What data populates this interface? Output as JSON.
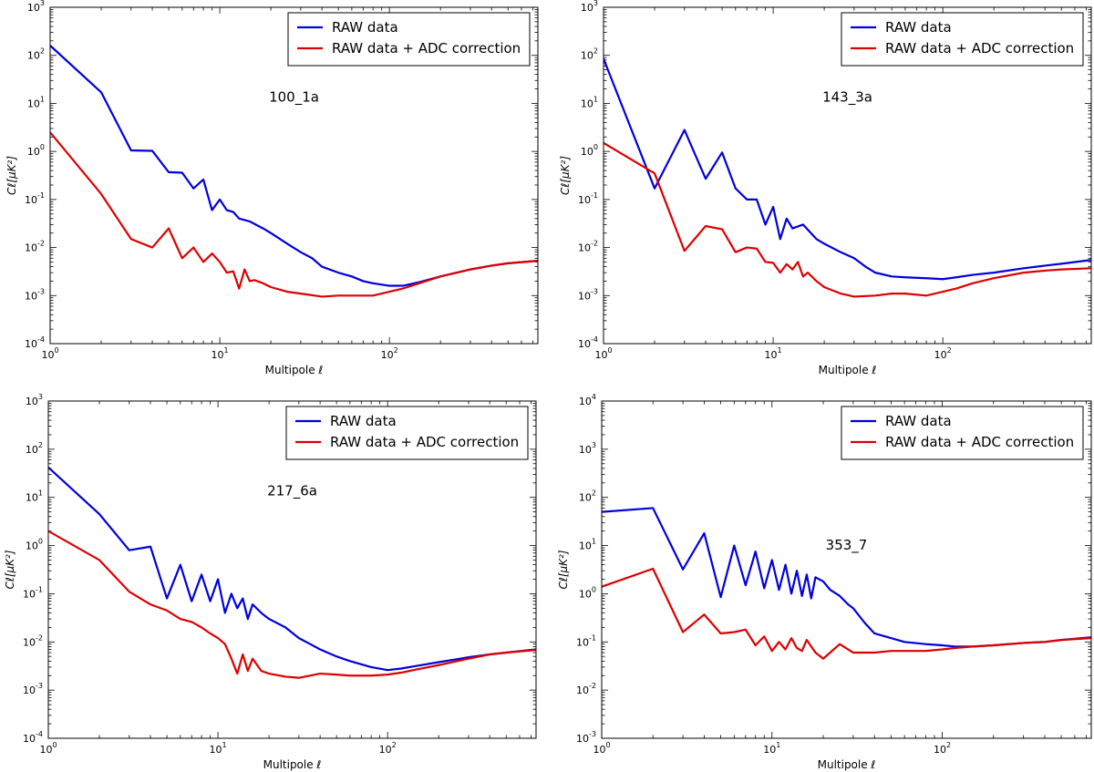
{
  "chart_data": [
    {
      "type": "line",
      "panel_label": "100_1a",
      "xlabel": "Multipole ℓ",
      "ylabel": "Cℓ[μK²]",
      "x_scale": "log",
      "y_scale": "log",
      "xlim": [
        1,
        750
      ],
      "ylim": [
        0.0001,
        1000
      ],
      "legend_position": "top-right",
      "series": [
        {
          "name": "RAW data",
          "color": "#0000dd",
          "x": [
            1,
            2,
            3,
            4,
            5,
            6,
            7,
            8,
            9,
            10,
            11,
            12,
            13,
            15,
            18,
            20,
            25,
            30,
            35,
            40,
            50,
            60,
            70,
            80,
            100,
            120,
            150,
            200,
            300,
            400,
            500,
            750
          ],
          "y": [
            160,
            17,
            1.05,
            1.03,
            0.37,
            0.36,
            0.17,
            0.26,
            0.06,
            0.1,
            0.06,
            0.055,
            0.04,
            0.035,
            0.025,
            0.02,
            0.012,
            0.008,
            0.006,
            0.004,
            0.003,
            0.0025,
            0.002,
            0.0018,
            0.0016,
            0.0016,
            0.0019,
            0.0025,
            0.0035,
            0.0042,
            0.0047,
            0.0053
          ]
        },
        {
          "name": "RAW data + ADC correction",
          "color": "#dd0000",
          "x": [
            1,
            2,
            3,
            4,
            5,
            6,
            7,
            8,
            9,
            10,
            11,
            12,
            13,
            14,
            15,
            16,
            18,
            20,
            25,
            30,
            40,
            50,
            60,
            80,
            100,
            120,
            150,
            200,
            300,
            400,
            500,
            750
          ],
          "y": [
            2.5,
            0.13,
            0.015,
            0.01,
            0.025,
            0.006,
            0.01,
            0.005,
            0.0075,
            0.005,
            0.003,
            0.0032,
            0.0014,
            0.0035,
            0.002,
            0.0021,
            0.0018,
            0.0015,
            0.0012,
            0.0011,
            0.00095,
            0.001,
            0.001,
            0.001,
            0.0012,
            0.0014,
            0.0018,
            0.0025,
            0.0035,
            0.0042,
            0.0047,
            0.0053
          ]
        }
      ]
    },
    {
      "type": "line",
      "panel_label": "143_3a",
      "xlabel": "Multipole ℓ",
      "ylabel": "Cℓ[μK²]",
      "x_scale": "log",
      "y_scale": "log",
      "xlim": [
        1,
        750
      ],
      "ylim": [
        0.0001,
        1000
      ],
      "legend_position": "top-right",
      "series": [
        {
          "name": "RAW data",
          "color": "#0000dd",
          "x": [
            1,
            2,
            3,
            4,
            5,
            6,
            7,
            8,
            9,
            10,
            11,
            12,
            13,
            15,
            18,
            20,
            25,
            30,
            35,
            40,
            50,
            60,
            80,
            100,
            120,
            150,
            200,
            300,
            400,
            500,
            750
          ],
          "y": [
            85,
            0.17,
            2.8,
            0.27,
            0.95,
            0.17,
            0.1,
            0.1,
            0.03,
            0.07,
            0.015,
            0.04,
            0.025,
            0.03,
            0.015,
            0.012,
            0.008,
            0.006,
            0.004,
            0.003,
            0.0025,
            0.0024,
            0.0023,
            0.0022,
            0.0024,
            0.0027,
            0.003,
            0.0037,
            0.0042,
            0.0046,
            0.0055
          ]
        },
        {
          "name": "RAW data + ADC correction",
          "color": "#dd0000",
          "x": [
            1,
            2,
            3,
            4,
            5,
            6,
            7,
            8,
            9,
            10,
            11,
            12,
            13,
            14,
            15,
            16,
            18,
            20,
            25,
            30,
            40,
            50,
            60,
            80,
            100,
            120,
            150,
            200,
            300,
            400,
            500,
            750
          ],
          "y": [
            1.5,
            0.35,
            0.0085,
            0.028,
            0.024,
            0.008,
            0.01,
            0.0095,
            0.005,
            0.0048,
            0.003,
            0.0045,
            0.0035,
            0.005,
            0.0025,
            0.003,
            0.002,
            0.0015,
            0.0011,
            0.00095,
            0.001,
            0.0011,
            0.0011,
            0.001,
            0.0012,
            0.0014,
            0.0018,
            0.0023,
            0.003,
            0.0033,
            0.0035,
            0.0037
          ]
        }
      ]
    },
    {
      "type": "line",
      "panel_label": "217_6a",
      "xlabel": "Multipole ℓ",
      "ylabel": "Cℓ[μK²]",
      "x_scale": "log",
      "y_scale": "log",
      "xlim": [
        1,
        750
      ],
      "ylim": [
        0.0001,
        1000
      ],
      "legend_position": "top-right",
      "series": [
        {
          "name": "RAW data",
          "color": "#0000dd",
          "x": [
            1,
            2,
            3,
            4,
            5,
            6,
            7,
            8,
            9,
            10,
            11,
            12,
            13,
            14,
            15,
            16,
            18,
            20,
            25,
            30,
            35,
            40,
            50,
            60,
            80,
            100,
            120,
            150,
            200,
            300,
            400,
            500,
            750
          ],
          "y": [
            42,
            4.5,
            0.8,
            0.95,
            0.08,
            0.4,
            0.07,
            0.25,
            0.07,
            0.2,
            0.04,
            0.1,
            0.05,
            0.08,
            0.03,
            0.06,
            0.04,
            0.03,
            0.02,
            0.012,
            0.009,
            0.007,
            0.005,
            0.004,
            0.003,
            0.0026,
            0.0028,
            0.0032,
            0.0038,
            0.0048,
            0.0055,
            0.006,
            0.007
          ]
        },
        {
          "name": "RAW data + ADC correction",
          "color": "#dd0000",
          "x": [
            1,
            2,
            3,
            4,
            5,
            6,
            7,
            8,
            9,
            10,
            11,
            12,
            13,
            14,
            15,
            16,
            18,
            20,
            25,
            30,
            40,
            50,
            60,
            80,
            100,
            120,
            150,
            200,
            300,
            400,
            500,
            750
          ],
          "y": [
            2.0,
            0.5,
            0.11,
            0.06,
            0.045,
            0.03,
            0.026,
            0.02,
            0.015,
            0.012,
            0.009,
            0.0045,
            0.0022,
            0.0055,
            0.0025,
            0.0045,
            0.0025,
            0.0022,
            0.0019,
            0.0018,
            0.0022,
            0.0021,
            0.002,
            0.002,
            0.0021,
            0.0023,
            0.0027,
            0.0033,
            0.0045,
            0.0055,
            0.006,
            0.0068
          ]
        }
      ]
    },
    {
      "type": "line",
      "panel_label": "353_7",
      "xlabel": "Multipole ℓ",
      "ylabel": "Cℓ[μK²]",
      "x_scale": "log",
      "y_scale": "log",
      "xlim": [
        1,
        750
      ],
      "ylim": [
        0.001,
        10000
      ],
      "legend_position": "top-right",
      "series": [
        {
          "name": "RAW data",
          "color": "#0000dd",
          "x": [
            1,
            2,
            3,
            4,
            5,
            6,
            7,
            8,
            9,
            10,
            11,
            12,
            13,
            14,
            15,
            16,
            17,
            18,
            20,
            22,
            25,
            28,
            30,
            35,
            40,
            50,
            60,
            80,
            100,
            120,
            150,
            200,
            300,
            400,
            500,
            750
          ],
          "y": [
            50,
            60,
            3.2,
            18,
            0.85,
            10,
            1.5,
            7.5,
            1.3,
            5.0,
            1.2,
            4.0,
            1.0,
            3.0,
            0.9,
            2.5,
            0.8,
            2.2,
            1.8,
            1.2,
            0.9,
            0.6,
            0.5,
            0.25,
            0.15,
            0.12,
            0.1,
            0.09,
            0.085,
            0.08,
            0.08,
            0.085,
            0.095,
            0.1,
            0.11,
            0.125
          ]
        },
        {
          "name": "RAW data + ADC correction",
          "color": "#dd0000",
          "x": [
            1,
            2,
            3,
            4,
            5,
            6,
            7,
            8,
            9,
            10,
            11,
            12,
            13,
            14,
            15,
            16,
            18,
            20,
            25,
            30,
            40,
            50,
            60,
            80,
            100,
            120,
            150,
            200,
            300,
            400,
            500,
            750
          ],
          "y": [
            1.4,
            3.3,
            0.16,
            0.37,
            0.15,
            0.16,
            0.18,
            0.085,
            0.13,
            0.065,
            0.1,
            0.07,
            0.12,
            0.075,
            0.065,
            0.11,
            0.06,
            0.045,
            0.09,
            0.06,
            0.06,
            0.065,
            0.065,
            0.065,
            0.07,
            0.075,
            0.08,
            0.085,
            0.095,
            0.1,
            0.11,
            0.12
          ]
        }
      ]
    }
  ]
}
